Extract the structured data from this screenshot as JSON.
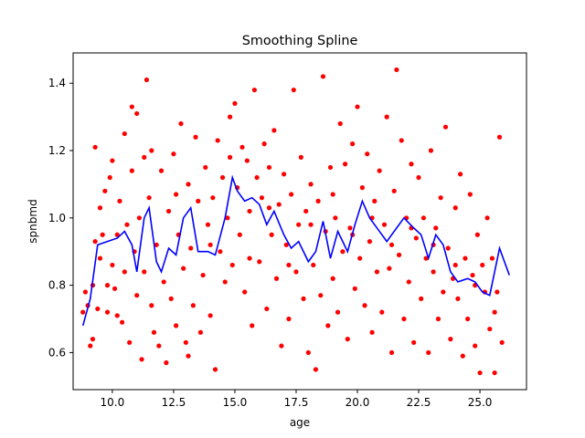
{
  "chart_data": {
    "type": "scatter",
    "title": "Smoothing Spline",
    "xlabel": "age",
    "ylabel": "spnbmd",
    "xlim": [
      8.4,
      26.9
    ],
    "ylim": [
      0.49,
      1.49
    ],
    "xticks": [
      10.0,
      12.5,
      15.0,
      17.5,
      20.0,
      22.5,
      25.0
    ],
    "xtick_labels": [
      "10.0",
      "12.5",
      "15.0",
      "17.5",
      "20.0",
      "22.5",
      "25.0"
    ],
    "yticks": [
      0.6,
      0.8,
      1.0,
      1.2,
      1.4
    ],
    "ytick_labels": [
      "0.6",
      "0.8",
      "1.0",
      "1.2",
      "1.4"
    ],
    "grid": false,
    "series": [
      {
        "kind": "scatter",
        "color": "#ff0000",
        "points": [
          [
            8.8,
            0.72
          ],
          [
            8.9,
            0.78
          ],
          [
            9.0,
            0.74
          ],
          [
            9.1,
            0.62
          ],
          [
            9.2,
            0.8
          ],
          [
            9.2,
            0.64
          ],
          [
            9.3,
            0.93
          ],
          [
            9.3,
            1.21
          ],
          [
            9.4,
            0.73
          ],
          [
            9.5,
            0.88
          ],
          [
            9.6,
            0.95
          ],
          [
            9.7,
            1.08
          ],
          [
            9.8,
            0.8
          ],
          [
            9.8,
            0.72
          ],
          [
            9.9,
            1.12
          ],
          [
            10.0,
            0.86
          ],
          [
            10.0,
            1.17
          ],
          [
            10.1,
            0.79
          ],
          [
            10.2,
            0.95
          ],
          [
            10.3,
            1.05
          ],
          [
            10.4,
            0.69
          ],
          [
            10.5,
            0.84
          ],
          [
            10.5,
            1.25
          ],
          [
            10.6,
            0.98
          ],
          [
            10.7,
            0.63
          ],
          [
            10.8,
            1.14
          ],
          [
            10.8,
            1.33
          ],
          [
            10.9,
            0.9
          ],
          [
            11.0,
            0.77
          ],
          [
            11.0,
            1.31
          ],
          [
            11.1,
            1.0
          ],
          [
            11.2,
            0.58
          ],
          [
            11.3,
            0.84
          ],
          [
            11.4,
            1.41
          ],
          [
            11.5,
            1.06
          ],
          [
            11.6,
            0.74
          ],
          [
            11.6,
            1.2
          ],
          [
            11.7,
            0.66
          ],
          [
            11.8,
            0.92
          ],
          [
            11.9,
            0.62
          ],
          [
            12.0,
            1.14
          ],
          [
            12.1,
            0.81
          ],
          [
            12.2,
            0.57
          ],
          [
            12.3,
            1.02
          ],
          [
            12.4,
            0.76
          ],
          [
            12.5,
            1.19
          ],
          [
            12.6,
            0.68
          ],
          [
            12.7,
            0.95
          ],
          [
            12.8,
            1.28
          ],
          [
            12.9,
            0.85
          ],
          [
            13.0,
            0.63
          ],
          [
            13.1,
            1.1
          ],
          [
            13.2,
            0.91
          ],
          [
            13.3,
            0.74
          ],
          [
            13.4,
            1.24
          ],
          [
            13.5,
            1.05
          ],
          [
            13.6,
            0.66
          ],
          [
            13.7,
            0.83
          ],
          [
            13.8,
            1.15
          ],
          [
            13.9,
            0.98
          ],
          [
            14.0,
            0.71
          ],
          [
            14.1,
            1.06
          ],
          [
            14.2,
            0.55
          ],
          [
            14.3,
            1.23
          ],
          [
            14.4,
            0.9
          ],
          [
            14.5,
            1.12
          ],
          [
            14.6,
            0.81
          ],
          [
            14.7,
            1.0
          ],
          [
            14.8,
            1.3
          ],
          [
            14.9,
            0.86
          ],
          [
            15.0,
            1.34
          ],
          [
            15.1,
            1.09
          ],
          [
            15.2,
            0.95
          ],
          [
            15.3,
            1.21
          ],
          [
            15.4,
            0.78
          ],
          [
            15.5,
            1.17
          ],
          [
            15.6,
            1.02
          ],
          [
            15.7,
            0.68
          ],
          [
            15.8,
            1.38
          ],
          [
            15.9,
            1.12
          ],
          [
            16.0,
            0.87
          ],
          [
            16.1,
            1.06
          ],
          [
            16.2,
            1.22
          ],
          [
            16.3,
            0.73
          ],
          [
            16.4,
            1.15
          ],
          [
            16.5,
            0.95
          ],
          [
            16.6,
            1.26
          ],
          [
            16.7,
            0.82
          ],
          [
            16.8,
            1.04
          ],
          [
            16.9,
            0.62
          ],
          [
            17.0,
            1.13
          ],
          [
            17.1,
            0.92
          ],
          [
            17.2,
            0.7
          ],
          [
            17.3,
            1.07
          ],
          [
            17.4,
            1.38
          ],
          [
            17.5,
            0.84
          ],
          [
            17.6,
            0.98
          ],
          [
            17.7,
            1.18
          ],
          [
            17.8,
            0.76
          ],
          [
            17.9,
            1.02
          ],
          [
            18.0,
            0.6
          ],
          [
            18.1,
            1.1
          ],
          [
            18.2,
            0.86
          ],
          [
            18.3,
            0.55
          ],
          [
            18.4,
            1.05
          ],
          [
            18.5,
            0.77
          ],
          [
            18.6,
            1.42
          ],
          [
            18.7,
            0.96
          ],
          [
            18.8,
            0.68
          ],
          [
            18.9,
            1.15
          ],
          [
            19.0,
            0.82
          ],
          [
            19.1,
            1.0
          ],
          [
            19.2,
            0.72
          ],
          [
            19.3,
            1.28
          ],
          [
            19.4,
            0.9
          ],
          [
            19.5,
            1.16
          ],
          [
            19.6,
            0.64
          ],
          [
            19.7,
            0.97
          ],
          [
            19.8,
            1.22
          ],
          [
            19.9,
            0.79
          ],
          [
            20.0,
            1.33
          ],
          [
            20.1,
            0.88
          ],
          [
            20.2,
            1.09
          ],
          [
            20.3,
            0.74
          ],
          [
            20.4,
            1.19
          ],
          [
            20.5,
            0.93
          ],
          [
            20.6,
            0.66
          ],
          [
            20.7,
            1.05
          ],
          [
            20.8,
            0.84
          ],
          [
            20.9,
            1.14
          ],
          [
            21.0,
            0.72
          ],
          [
            21.1,
            0.98
          ],
          [
            21.2,
            1.3
          ],
          [
            21.3,
            0.85
          ],
          [
            21.4,
            0.6
          ],
          [
            21.5,
            1.08
          ],
          [
            21.6,
            1.44
          ],
          [
            21.7,
            0.89
          ],
          [
            21.8,
            1.23
          ],
          [
            21.9,
            0.7
          ],
          [
            22.0,
            1.0
          ],
          [
            22.1,
            0.81
          ],
          [
            22.2,
            1.16
          ],
          [
            22.3,
            0.63
          ],
          [
            22.4,
            0.94
          ],
          [
            22.5,
            1.12
          ],
          [
            22.6,
            0.76
          ],
          [
            22.7,
            1.0
          ],
          [
            22.8,
            0.88
          ],
          [
            22.9,
            0.6
          ],
          [
            23.0,
            1.2
          ],
          [
            23.1,
            0.84
          ],
          [
            23.2,
            0.97
          ],
          [
            23.3,
            0.7
          ],
          [
            23.4,
            1.06
          ],
          [
            23.5,
            0.78
          ],
          [
            23.6,
            1.27
          ],
          [
            23.7,
            0.91
          ],
          [
            23.8,
            0.64
          ],
          [
            23.9,
            0.82
          ],
          [
            24.0,
            1.03
          ],
          [
            24.1,
            0.76
          ],
          [
            24.2,
            1.13
          ],
          [
            24.3,
            0.59
          ],
          [
            24.4,
            0.88
          ],
          [
            24.5,
            0.7
          ],
          [
            24.6,
            1.07
          ],
          [
            24.7,
            0.83
          ],
          [
            24.8,
            0.62
          ],
          [
            24.9,
            0.95
          ],
          [
            25.0,
            0.54
          ],
          [
            25.1,
            0.86
          ],
          [
            25.2,
            0.78
          ],
          [
            25.3,
            1.0
          ],
          [
            25.4,
            0.67
          ],
          [
            25.5,
            0.88
          ],
          [
            25.6,
            0.54
          ],
          [
            25.7,
            0.78
          ],
          [
            25.8,
            1.24
          ],
          [
            25.9,
            0.63
          ],
          [
            9.5,
            1.03
          ],
          [
            10.2,
            0.71
          ],
          [
            11.3,
            1.18
          ],
          [
            12.6,
            1.07
          ],
          [
            13.1,
            0.59
          ],
          [
            14.0,
            0.92
          ],
          [
            14.8,
            1.18
          ],
          [
            15.6,
            0.88
          ],
          [
            16.4,
            1.03
          ],
          [
            17.2,
            0.86
          ],
          [
            18.1,
            0.98
          ],
          [
            19.0,
            1.07
          ],
          [
            19.8,
            0.95
          ],
          [
            20.6,
            1.0
          ],
          [
            21.4,
            0.92
          ],
          [
            22.2,
            0.97
          ],
          [
            23.1,
            0.92
          ],
          [
            24.0,
            0.86
          ],
          [
            24.8,
            0.8
          ],
          [
            25.6,
            0.72
          ]
        ]
      },
      {
        "kind": "line",
        "name": "",
        "color": "#0000ff",
        "points": [
          [
            8.8,
            0.68
          ],
          [
            9.1,
            0.76
          ],
          [
            9.4,
            0.92
          ],
          [
            9.8,
            0.93
          ],
          [
            10.2,
            0.94
          ],
          [
            10.5,
            0.96
          ],
          [
            10.8,
            0.92
          ],
          [
            11.0,
            0.84
          ],
          [
            11.3,
            1.0
          ],
          [
            11.5,
            1.03
          ],
          [
            11.8,
            0.87
          ],
          [
            12.0,
            0.84
          ],
          [
            12.3,
            0.91
          ],
          [
            12.6,
            0.89
          ],
          [
            12.9,
            1.0
          ],
          [
            13.2,
            1.03
          ],
          [
            13.5,
            0.9
          ],
          [
            13.9,
            0.9
          ],
          [
            14.2,
            0.89
          ],
          [
            14.6,
            1.0
          ],
          [
            14.9,
            1.12
          ],
          [
            15.1,
            1.08
          ],
          [
            15.4,
            1.05
          ],
          [
            15.7,
            1.06
          ],
          [
            16.0,
            1.04
          ],
          [
            16.3,
            0.98
          ],
          [
            16.6,
            1.02
          ],
          [
            17.0,
            0.95
          ],
          [
            17.3,
            0.91
          ],
          [
            17.6,
            0.93
          ],
          [
            18.0,
            0.87
          ],
          [
            18.3,
            0.9
          ],
          [
            18.6,
            0.99
          ],
          [
            18.9,
            0.88
          ],
          [
            19.2,
            0.96
          ],
          [
            19.6,
            0.9
          ],
          [
            19.9,
            0.98
          ],
          [
            20.2,
            1.05
          ],
          [
            20.5,
            1.0
          ],
          [
            20.9,
            0.96
          ],
          [
            21.2,
            0.93
          ],
          [
            21.6,
            0.97
          ],
          [
            21.9,
            1.0
          ],
          [
            22.3,
            0.97
          ],
          [
            22.6,
            0.95
          ],
          [
            22.9,
            0.88
          ],
          [
            23.2,
            0.95
          ],
          [
            23.5,
            0.92
          ],
          [
            23.8,
            0.84
          ],
          [
            24.1,
            0.81
          ],
          [
            24.5,
            0.82
          ],
          [
            24.8,
            0.81
          ],
          [
            25.1,
            0.78
          ],
          [
            25.4,
            0.77
          ],
          [
            25.8,
            0.91
          ],
          [
            26.2,
            0.83
          ]
        ]
      }
    ]
  }
}
